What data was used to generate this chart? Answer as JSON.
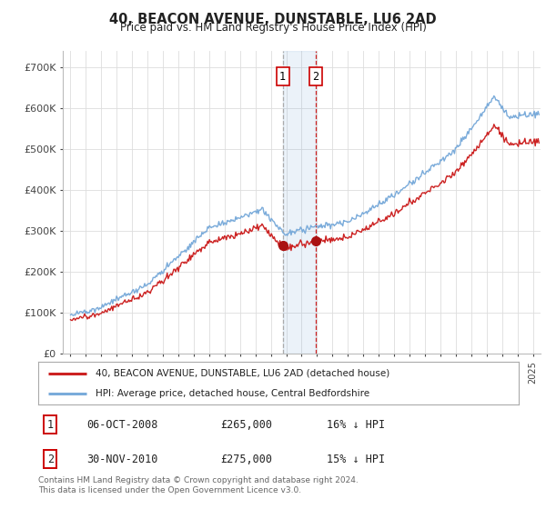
{
  "title": "40, BEACON AVENUE, DUNSTABLE, LU6 2AD",
  "subtitle": "Price paid vs. HM Land Registry's House Price Index (HPI)",
  "ylabel_ticks": [
    "£0",
    "£100K",
    "£200K",
    "£300K",
    "£400K",
    "£500K",
    "£600K",
    "£700K"
  ],
  "ytick_vals": [
    0,
    100000,
    200000,
    300000,
    400000,
    500000,
    600000,
    700000
  ],
  "ylim": [
    0,
    740000
  ],
  "xlim_start": 1994.5,
  "xlim_end": 2025.5,
  "hpi_color": "#7aabda",
  "price_color": "#cc2222",
  "marker_color": "#aa1111",
  "sale1_x": 2008.77,
  "sale1_y": 265000,
  "sale2_x": 2010.92,
  "sale2_y": 275000,
  "vline1_x": 2008.77,
  "vline2_x": 2010.92,
  "legend_label1": "40, BEACON AVENUE, DUNSTABLE, LU6 2AD (detached house)",
  "legend_label2": "HPI: Average price, detached house, Central Bedfordshire",
  "table_row1_num": "1",
  "table_row1_date": "06-OCT-2008",
  "table_row1_price": "£265,000",
  "table_row1_hpi": "16% ↓ HPI",
  "table_row2_num": "2",
  "table_row2_date": "30-NOV-2010",
  "table_row2_price": "£275,000",
  "table_row2_hpi": "15% ↓ HPI",
  "footer": "Contains HM Land Registry data © Crown copyright and database right 2024.\nThis data is licensed under the Open Government Licence v3.0.",
  "background_color": "#ffffff",
  "grid_color": "#dddddd"
}
